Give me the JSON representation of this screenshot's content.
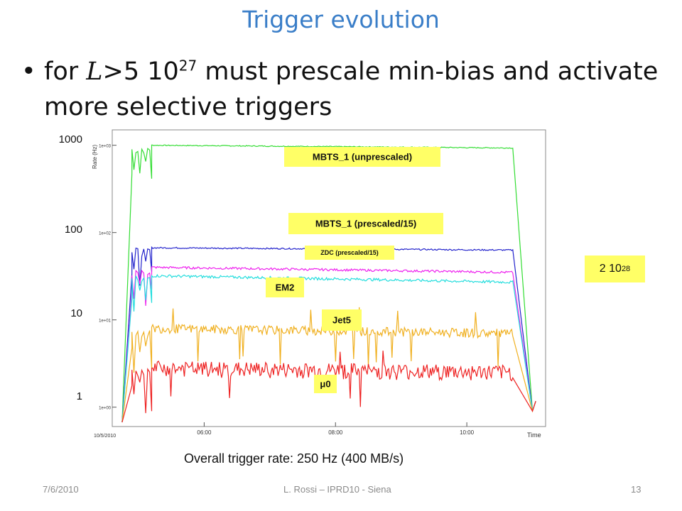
{
  "slide": {
    "title": "Trigger evolution",
    "bullet_prefix": "for ",
    "bullet_L": "L",
    "bullet_mid": ">5 10",
    "bullet_exp": "27",
    "bullet_suffix": " must prescale min-bias and activate more selective triggers",
    "summary": "Overall trigger rate: 250 Hz (400 MB/s)",
    "note_base": "2 10",
    "note_exp": "28",
    "footer_date": "7/6/2010",
    "footer_author": "L. Rossi – IPRD10 - Siena",
    "footer_page": "13"
  },
  "chart_data": {
    "type": "line",
    "scale_y": "log",
    "ylim": [
      0.6,
      1500
    ],
    "xlim_hours": [
      4.6,
      11.2
    ],
    "ylabel": "Rate (Hz)",
    "xlabel": "Time",
    "date_label": "10/5/2010",
    "x_tick_labels": [
      "06:00",
      "08:00",
      "10:00"
    ],
    "y_tick_labels_inner": [
      "1e+03",
      "1e+02",
      "1e+01",
      "1e+00"
    ],
    "y_tick_labels_outer": [
      "1000",
      "100",
      "10",
      "1"
    ],
    "grid": false,
    "series": [
      {
        "name": "MBTS_1 (unprescaled)",
        "color": "#33dd33",
        "x": [
          4.9,
          5.2,
          10.7,
          11.0
        ],
        "y": [
          1000,
          1000,
          930,
          0.9
        ]
      },
      {
        "name": "MBTS_1 (prescaled/15)",
        "color": "#2222cc",
        "x": [
          4.9,
          5.2,
          10.7,
          11.0
        ],
        "y": [
          67,
          67,
          63,
          0.9
        ]
      },
      {
        "name": "ZDC (prescaled/15)",
        "color": "#ee22ee",
        "x": [
          4.9,
          5.2,
          10.7,
          11.0
        ],
        "y": [
          40,
          40,
          35,
          0.9
        ]
      },
      {
        "name": "EM2",
        "color": "#22dddd",
        "x": [
          4.9,
          5.2,
          10.7,
          11.0
        ],
        "y": [
          32,
          32,
          27,
          0.9
        ]
      },
      {
        "name": "Jet5",
        "color": "#f0b020",
        "x": [
          4.9,
          5.2,
          10.7,
          11.0
        ],
        "y": [
          8,
          8,
          7,
          0.9
        ]
      },
      {
        "name": "μ0",
        "color": "#ee2222",
        "x": [
          4.9,
          5.2,
          10.7,
          11.0
        ],
        "y": [
          2.8,
          2.8,
          2.5,
          0.9
        ]
      }
    ]
  }
}
